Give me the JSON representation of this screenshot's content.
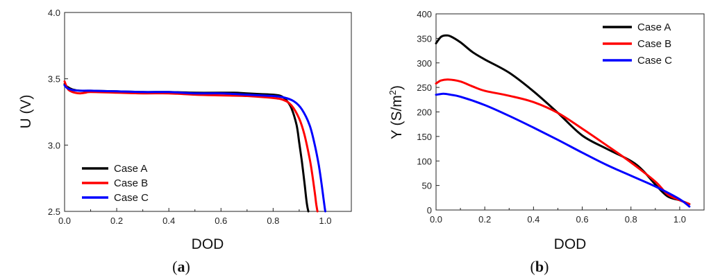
{
  "chart_data": [
    {
      "id": "a",
      "type": "line",
      "panel_label": "a",
      "xlabel": "DOD",
      "ylabel": "U (V)",
      "xlim": [
        0,
        1.1
      ],
      "ylim": [
        2.5,
        4.0
      ],
      "xticks": [
        0.0,
        0.2,
        0.4,
        0.6,
        0.8,
        1.0
      ],
      "xtick_labels": [
        "0.0",
        "0.2",
        "0.4",
        "0.6",
        "0.8",
        "1.0"
      ],
      "yticks": [
        2.5,
        3.0,
        3.5,
        4.0
      ],
      "ytick_labels": [
        "2.5",
        "3.0",
        "3.5",
        "4.0"
      ],
      "legend_position": "bottom-left",
      "series": [
        {
          "name": "Case A",
          "color": "#000000",
          "x": [
            0.0,
            0.01,
            0.03,
            0.06,
            0.1,
            0.2,
            0.3,
            0.4,
            0.5,
            0.6,
            0.65,
            0.7,
            0.75,
            0.8,
            0.83,
            0.85,
            0.87,
            0.89,
            0.9,
            0.91,
            0.92,
            0.925,
            0.93,
            0.935
          ],
          "y": [
            3.46,
            3.44,
            3.42,
            3.41,
            3.41,
            3.405,
            3.4,
            3.4,
            3.395,
            3.395,
            3.395,
            3.39,
            3.385,
            3.38,
            3.37,
            3.34,
            3.28,
            3.15,
            3.02,
            2.88,
            2.72,
            2.63,
            2.55,
            2.5
          ]
        },
        {
          "name": "Case B",
          "color": "#ff0000",
          "x": [
            0.0,
            0.01,
            0.02,
            0.04,
            0.06,
            0.08,
            0.1,
            0.2,
            0.3,
            0.4,
            0.5,
            0.6,
            0.7,
            0.8,
            0.84,
            0.87,
            0.9,
            0.92,
            0.94,
            0.95,
            0.96,
            0.965,
            0.97
          ],
          "y": [
            3.48,
            3.43,
            3.41,
            3.395,
            3.39,
            3.395,
            3.4,
            3.395,
            3.39,
            3.39,
            3.38,
            3.375,
            3.37,
            3.355,
            3.34,
            3.3,
            3.2,
            3.08,
            2.9,
            2.78,
            2.64,
            2.56,
            2.5
          ]
        },
        {
          "name": "Case C",
          "color": "#0000ff",
          "x": [
            0.0,
            0.01,
            0.03,
            0.06,
            0.1,
            0.2,
            0.3,
            0.4,
            0.5,
            0.6,
            0.7,
            0.8,
            0.84,
            0.88,
            0.91,
            0.94,
            0.96,
            0.975,
            0.985,
            0.995,
            1.0
          ],
          "y": [
            3.45,
            3.43,
            3.415,
            3.41,
            3.41,
            3.405,
            3.4,
            3.4,
            3.39,
            3.39,
            3.38,
            3.37,
            3.36,
            3.33,
            3.27,
            3.15,
            3.0,
            2.85,
            2.72,
            2.57,
            2.5
          ]
        }
      ]
    },
    {
      "id": "b",
      "type": "line",
      "panel_label": "b",
      "xlabel": "DOD",
      "ylabel_main": "Y (S/m",
      "ylabel_sup": "2",
      "ylabel_end": ")",
      "xlim": [
        0,
        1.1
      ],
      "ylim": [
        0,
        400
      ],
      "xticks": [
        0.0,
        0.2,
        0.4,
        0.6,
        0.8,
        1.0
      ],
      "xtick_labels": [
        "0.0",
        "0.2",
        "0.4",
        "0.6",
        "0.8",
        "1.0"
      ],
      "yticks": [
        0,
        50,
        100,
        150,
        200,
        250,
        300,
        350,
        400
      ],
      "ytick_labels": [
        "0",
        "50",
        "100",
        "150",
        "200",
        "250",
        "300",
        "350",
        "400"
      ],
      "legend_position": "top-right",
      "series": [
        {
          "name": "Case A",
          "color": "#000000",
          "x": [
            0.0,
            0.02,
            0.04,
            0.06,
            0.1,
            0.15,
            0.2,
            0.3,
            0.4,
            0.5,
            0.6,
            0.7,
            0.8,
            0.85,
            0.9,
            0.95,
            1.0,
            1.04
          ],
          "y": [
            340,
            353,
            356,
            354,
            342,
            322,
            307,
            280,
            242,
            198,
            152,
            125,
            100,
            80,
            52,
            28,
            20,
            12
          ]
        },
        {
          "name": "Case B",
          "color": "#ff0000",
          "x": [
            0.0,
            0.02,
            0.05,
            0.1,
            0.15,
            0.2,
            0.3,
            0.4,
            0.5,
            0.6,
            0.7,
            0.8,
            0.9,
            0.95,
            1.0,
            1.04
          ],
          "y": [
            258,
            264,
            266,
            262,
            252,
            243,
            233,
            220,
            198,
            166,
            132,
            97,
            58,
            32,
            20,
            12
          ]
        },
        {
          "name": "Case C",
          "color": "#0000ff",
          "x": [
            0.0,
            0.03,
            0.06,
            0.1,
            0.2,
            0.3,
            0.4,
            0.5,
            0.6,
            0.7,
            0.8,
            0.9,
            1.0,
            1.04
          ],
          "y": [
            235,
            237,
            235,
            231,
            214,
            192,
            168,
            143,
            117,
            92,
            70,
            48,
            22,
            7
          ]
        }
      ]
    }
  ]
}
